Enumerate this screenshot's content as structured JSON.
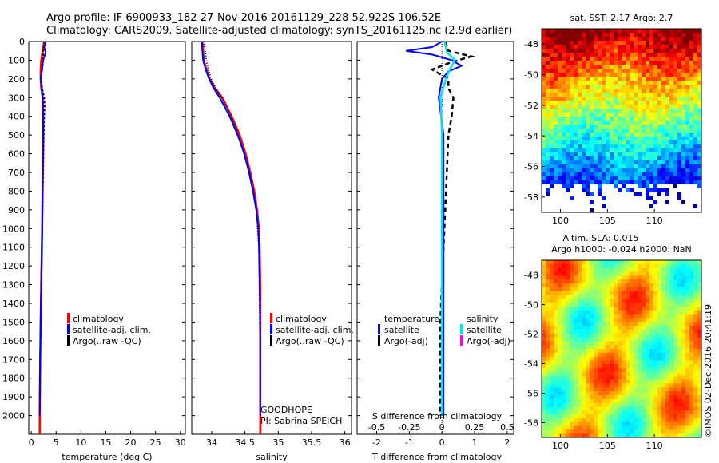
{
  "header": {
    "line1": "Argo profile: IF 6900933_182 27-Nov-2016 20161129_228 52.922S 106.52E",
    "line2": "Climatology: CARS2009. Satellite-adjusted climatology: synTS_20161125.nc (2.9d earlier)"
  },
  "colors": {
    "climatology": "#ff0000",
    "satellite": "#0000ff",
    "argo": "#000000",
    "sal_satellite": "#00e5ee",
    "sal_argo": "#ff00ff"
  },
  "chart_data": [
    {
      "type": "line",
      "name": "temperature-profile",
      "xlabel": "temperature (deg C)",
      "ylabel": "",
      "xlim": [
        -0.5,
        31
      ],
      "ylim": [
        2100,
        0
      ],
      "xticks": [
        "0",
        "5",
        "10",
        "15",
        "20",
        "25",
        "30"
      ],
      "yticks": [
        "0",
        "100",
        "200",
        "300",
        "400",
        "500",
        "600",
        "700",
        "800",
        "900",
        "1000",
        "1100",
        "1200",
        "1300",
        "1400",
        "1500",
        "1600",
        "1700",
        "1800",
        "1900",
        "2000"
      ],
      "legend": [
        "climatology",
        "satellite-adj. clim.",
        "Argo(..raw -QC)"
      ],
      "series": [
        {
          "name": "climatology",
          "depth": [
            0,
            50,
            100,
            150,
            200,
            250,
            300,
            400,
            500,
            700,
            1000,
            1300,
            1500,
            1700,
            2000,
            2100
          ],
          "values": [
            2.6,
            2.3,
            2.0,
            1.9,
            1.9,
            2.0,
            2.3,
            2.4,
            2.4,
            2.3,
            2.2,
            2.0,
            1.9,
            1.8,
            1.7,
            1.7
          ]
        },
        {
          "name": "satellite-adj. clim.",
          "depth": [
            0,
            30,
            60,
            100,
            150,
            200,
            250,
            300,
            400,
            500,
            700,
            1000,
            1300,
            1500,
            1700,
            2000
          ],
          "values": [
            2.9,
            2.6,
            2.9,
            2.4,
            2.2,
            1.9,
            2.1,
            2.3,
            2.4,
            2.4,
            2.3,
            2.2,
            2.0,
            1.9,
            1.8,
            1.7
          ]
        },
        {
          "name": "Argo(..raw -QC)",
          "depth": [
            0,
            50,
            100,
            150,
            200,
            250,
            300,
            350,
            400,
            500,
            700,
            1000,
            1300,
            1500,
            1700,
            1900
          ],
          "values": [
            2.7,
            2.4,
            2.4,
            2.1,
            2.0,
            2.2,
            2.6,
            2.7,
            2.6,
            2.5,
            2.4,
            2.2,
            2.0,
            1.9,
            1.8,
            1.7
          ]
        }
      ]
    },
    {
      "type": "line",
      "name": "salinity-profile",
      "xlabel": "salinity",
      "xlim": [
        33.7,
        36.1
      ],
      "ylim": [
        2100,
        0
      ],
      "xticks": [
        "34",
        "34.5",
        "35",
        "35.5",
        "36"
      ],
      "legend": [
        "climatology",
        "satellite-adj. clim.",
        "Argo(..raw -QC)"
      ],
      "annotation": [
        "GOODHOPE",
        "PI: Sabrina SPEICH"
      ],
      "series": [
        {
          "name": "climatology",
          "depth": [
            0,
            50,
            100,
            150,
            200,
            250,
            300,
            400,
            500,
            600,
            700,
            800,
            900,
            1000,
            1100,
            1300,
            1600,
            2000,
            2100
          ],
          "values": [
            33.86,
            33.87,
            33.88,
            33.92,
            33.97,
            34.05,
            34.16,
            34.3,
            34.42,
            34.51,
            34.58,
            34.64,
            34.68,
            34.71,
            34.72,
            34.73,
            34.73,
            34.73,
            34.73
          ]
        },
        {
          "name": "satellite-adj. clim.",
          "depth": [
            0,
            50,
            100,
            150,
            200,
            250,
            300,
            400,
            500,
            600,
            700,
            800,
            900,
            1000,
            1100,
            1300,
            1600,
            2000
          ],
          "values": [
            33.85,
            33.86,
            33.87,
            33.91,
            33.96,
            34.03,
            34.12,
            34.27,
            34.39,
            34.49,
            34.56,
            34.62,
            34.67,
            34.7,
            34.71,
            34.72,
            34.73,
            34.73
          ]
        },
        {
          "name": "Argo(..raw -QC)",
          "depth": [
            0,
            50,
            100,
            150,
            200,
            250,
            300,
            400,
            500,
            700,
            900,
            1100,
            1400,
            1700,
            1950
          ],
          "values": [
            33.88,
            33.9,
            33.92,
            33.95,
            33.99,
            34.06,
            34.15,
            34.29,
            34.4,
            34.57,
            34.67,
            34.71,
            34.72,
            34.73,
            34.73
          ]
        }
      ]
    },
    {
      "type": "line",
      "name": "difference-profile",
      "xlabel": "T difference from climatology",
      "xlabel_top": "S difference from climatology",
      "xlim": [
        -2.6,
        2.2
      ],
      "ylim": [
        2100,
        0
      ],
      "xticks": [
        "-2",
        "-1",
        "0",
        "1",
        "2"
      ],
      "xticks_top": [
        "-0.5",
        "-0.25",
        "0",
        "0.25",
        "0.5"
      ],
      "legend": {
        "temperature_title": "temperature",
        "salinity_title": "salinity",
        "t_satellite": "satellite",
        "t_argo": "Argo(-adj)",
        "s_satellite": "satellite",
        "s_argo": "Argo(-adj)"
      },
      "series": [
        {
          "name": "T satellite",
          "depth": [
            0,
            30,
            50,
            70,
            100,
            130,
            160,
            200,
            300,
            500,
            800,
            1200,
            1600,
            2000
          ],
          "values": [
            0,
            -0.3,
            -1.1,
            -0.3,
            0.3,
            0.6,
            0.2,
            0.0,
            -0.1,
            0.05,
            0.05,
            0.05,
            0.05,
            0.05
          ]
        },
        {
          "name": "T Argo(-adj)",
          "depth": [
            0,
            50,
            80,
            110,
            150,
            200,
            250,
            300,
            400,
            500,
            700,
            900,
            1100,
            1300,
            1500,
            1700,
            1900,
            2000
          ],
          "values": [
            0.1,
            0.2,
            0.9,
            0.3,
            -0.3,
            0.2,
            0.2,
            0.35,
            0.3,
            0.2,
            0.15,
            0.1,
            0.05,
            0.0,
            -0.05,
            -0.05,
            -0.05,
            -0.05
          ]
        },
        {
          "name": "S satellite",
          "depth": [
            0,
            60,
            100,
            150,
            200,
            250,
            300,
            500,
            800,
            1200,
            1600,
            2000
          ],
          "values": [
            0.02,
            0.04,
            0.1,
            0.06,
            0.03,
            0.01,
            -0.01,
            0.0,
            0.0,
            0.0,
            0.0,
            0.0
          ]
        },
        {
          "name": "S Argo(-adj)",
          "depth": [],
          "values": []
        }
      ]
    },
    {
      "type": "heatmap",
      "name": "sst-map",
      "title": "sat. SST: 2.17 Argo: 2.7",
      "xticks": [
        "100",
        "105",
        "110"
      ],
      "yticks": [
        "-48",
        "-50",
        "-52",
        "-54",
        "-56",
        "-58"
      ],
      "xlim": [
        98,
        115
      ],
      "ylim": [
        -59,
        -47
      ]
    },
    {
      "type": "heatmap",
      "name": "sla-map",
      "title_line1": "Altim. SLA: 0.015",
      "title_line2": "Argo h1000: -0.024 h2000: NaN",
      "xticks": [
        "100",
        "105",
        "110"
      ],
      "yticks": [
        "-48",
        "-50",
        "-52",
        "-54",
        "-56",
        "-58"
      ],
      "xlim": [
        98,
        115
      ],
      "ylim": [
        -59,
        -47
      ]
    }
  ],
  "footer": {
    "credit": "©IMOS 02-Dec-2016 20:41:19"
  }
}
